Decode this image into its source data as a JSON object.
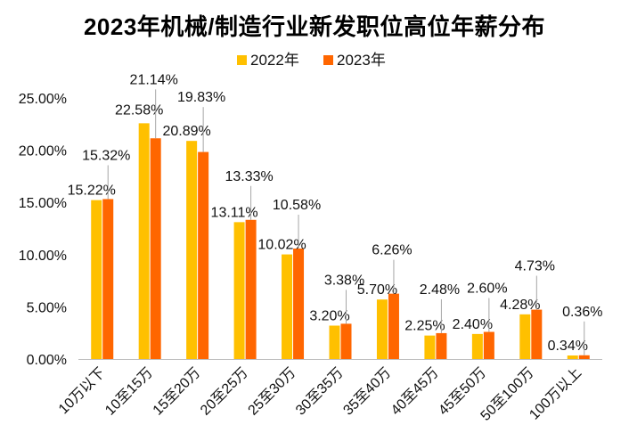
{
  "chart_data": {
    "type": "bar",
    "title": "2023年机械/制造行业新发职位高位年薪分布",
    "xlabel": "",
    "ylabel": "",
    "ylim": [
      0,
      25
    ],
    "yticks": [
      "0.00%",
      "5.00%",
      "10.00%",
      "15.00%",
      "20.00%",
      "25.00%"
    ],
    "categories": [
      "10万以下",
      "10至15万",
      "15至20万",
      "20至25万",
      "25至30万",
      "30至35万",
      "35至40万",
      "40至45万",
      "45至50万",
      "50至100万",
      "100万以上"
    ],
    "series": [
      {
        "name": "2022年",
        "color": "#FFC000",
        "values": [
          15.22,
          22.58,
          20.89,
          13.11,
          10.02,
          3.2,
          5.7,
          2.25,
          2.4,
          4.28,
          0.34
        ],
        "labels": [
          "15.22%",
          "22.58%",
          "20.89%",
          "13.11%",
          "10.02%",
          "3.20%",
          "5.70%",
          "2.25%",
          "2.40%",
          "4.28%",
          "0.34%"
        ]
      },
      {
        "name": "2023年",
        "color": "#FF6600",
        "values": [
          15.32,
          21.14,
          19.83,
          13.33,
          10.58,
          3.38,
          6.26,
          2.48,
          2.6,
          4.73,
          0.36
        ],
        "labels": [
          "15.32%",
          "21.14%",
          "19.83%",
          "13.33%",
          "10.58%",
          "3.38%",
          "6.26%",
          "2.48%",
          "2.60%",
          "4.73%",
          "0.36%"
        ]
      }
    ],
    "legend": "top",
    "grid": false
  }
}
